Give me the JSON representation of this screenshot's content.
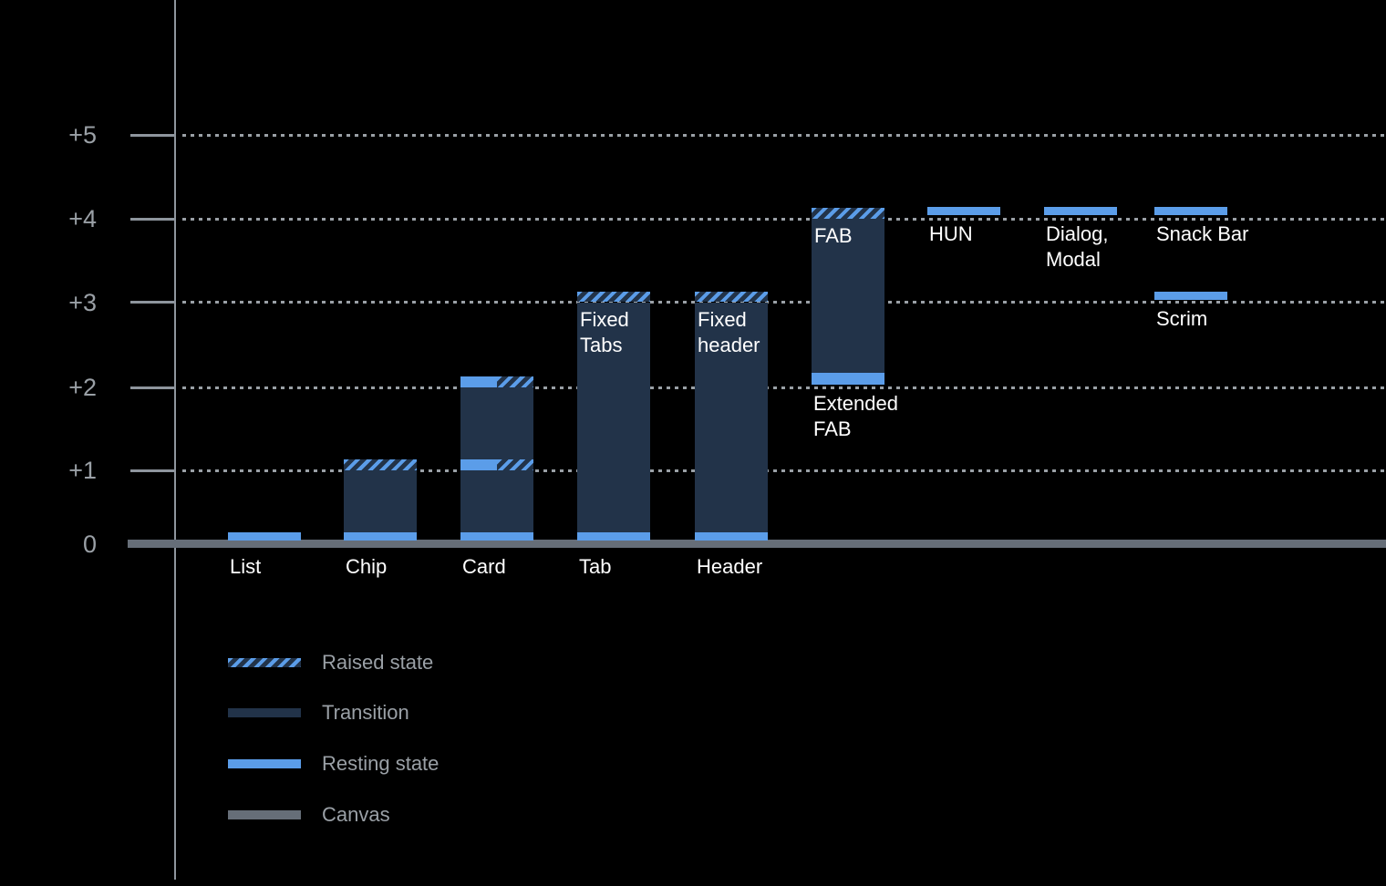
{
  "background_color": "#000000",
  "colors": {
    "resting_state": "#5b9de9",
    "transition": "#223349",
    "canvas": "#666e78",
    "axis": "#8e959d",
    "grid_dots": "#9aa0a6",
    "axis_text": "#9aa0a6",
    "bar_text": "#ffffff"
  },
  "chart_data": {
    "type": "bar",
    "title": "",
    "xlabel": "",
    "ylabel": "",
    "grid": "dotted horizontal lines at each elevation level",
    "legend_position": "bottom-left",
    "y_axis": {
      "range": [
        0,
        5
      ],
      "ticks": [
        {
          "label": "+5",
          "value": 5
        },
        {
          "label": "+4",
          "value": 4
        },
        {
          "label": "+3",
          "value": 3
        },
        {
          "label": "+2",
          "value": 2
        },
        {
          "label": "+1",
          "value": 1
        },
        {
          "label": "0",
          "value": 0
        }
      ]
    },
    "legend": [
      {
        "kind": "raised",
        "label": "Raised state"
      },
      {
        "kind": "transition",
        "label": "Transition"
      },
      {
        "kind": "resting",
        "label": "Resting state"
      },
      {
        "kind": "canvas",
        "label": "Canvas"
      }
    ],
    "elements": [
      {
        "id": "list",
        "column": 0,
        "axis_label": "List",
        "resting_elevation": 0,
        "segments": [
          {
            "kind": "resting",
            "from": 0.05,
            "to": 0.16
          }
        ]
      },
      {
        "id": "chip",
        "column": 1,
        "axis_label": "Chip",
        "resting_elevation": 0,
        "raised_elevation": 1,
        "segments": [
          {
            "kind": "resting",
            "from": 0.05,
            "to": 0.16
          },
          {
            "kind": "transition",
            "from": 0.16,
            "to": 1.0
          },
          {
            "kind": "raised",
            "from": 1.0,
            "to": 1.13
          }
        ]
      },
      {
        "id": "card",
        "column": 2,
        "axis_label": "Card",
        "resting_elevation": 0,
        "raised_elevation": 2,
        "intermediate_elevation": 1,
        "segments": [
          {
            "kind": "resting",
            "from": 0.05,
            "to": 0.16
          },
          {
            "kind": "transition",
            "from": 0.16,
            "to": 1.0
          },
          {
            "kind": "split",
            "from": 1.0,
            "to": 1.13
          },
          {
            "kind": "transition",
            "from": 1.13,
            "to": 2.0
          },
          {
            "kind": "split",
            "from": 2.0,
            "to": 2.13
          }
        ]
      },
      {
        "id": "tab",
        "column": 3,
        "axis_label": "Tab",
        "inner_label": "Fixed\nTabs",
        "resting_elevation": 0,
        "raised_elevation": 3,
        "segments": [
          {
            "kind": "resting",
            "from": 0.05,
            "to": 0.16
          },
          {
            "kind": "transition",
            "from": 0.16,
            "to": 3.0
          },
          {
            "kind": "raised",
            "from": 3.0,
            "to": 3.13
          }
        ]
      },
      {
        "id": "header",
        "column": 4,
        "axis_label": "Header",
        "inner_label": "Fixed\nheader",
        "resting_elevation": 0,
        "raised_elevation": 3,
        "segments": [
          {
            "kind": "resting",
            "from": 0.05,
            "to": 0.16
          },
          {
            "kind": "transition",
            "from": 0.16,
            "to": 3.0
          },
          {
            "kind": "raised",
            "from": 3.0,
            "to": 3.13
          }
        ]
      },
      {
        "id": "extended-fab",
        "column": 5,
        "inner_label": "FAB",
        "below_label": "Extended\nFAB",
        "resting_elevation": 2,
        "raised_elevation": 4,
        "segments": [
          {
            "kind": "resting",
            "from": 2.03,
            "to": 2.17
          },
          {
            "kind": "transition",
            "from": 2.17,
            "to": 4.0
          },
          {
            "kind": "raised",
            "from": 4.0,
            "to": 4.13
          }
        ]
      },
      {
        "id": "hun",
        "column": 6,
        "below_label": "HUN",
        "resting_elevation": 4,
        "segments": [
          {
            "kind": "resting",
            "from": 4.04,
            "to": 4.14
          }
        ]
      },
      {
        "id": "dialog-modal",
        "column": 7,
        "below_label": "Dialog,\nModal",
        "resting_elevation": 4,
        "segments": [
          {
            "kind": "resting",
            "from": 4.04,
            "to": 4.14
          }
        ]
      },
      {
        "id": "snack-bar",
        "column": 8,
        "below_label": "Snack Bar",
        "resting_elevation": 4,
        "segments": [
          {
            "kind": "resting",
            "from": 4.04,
            "to": 4.14
          }
        ]
      },
      {
        "id": "scrim",
        "column": 8,
        "below_label": "Scrim",
        "resting_elevation": 3,
        "segments": [
          {
            "kind": "resting",
            "from": 3.03,
            "to": 3.13
          }
        ]
      }
    ]
  }
}
